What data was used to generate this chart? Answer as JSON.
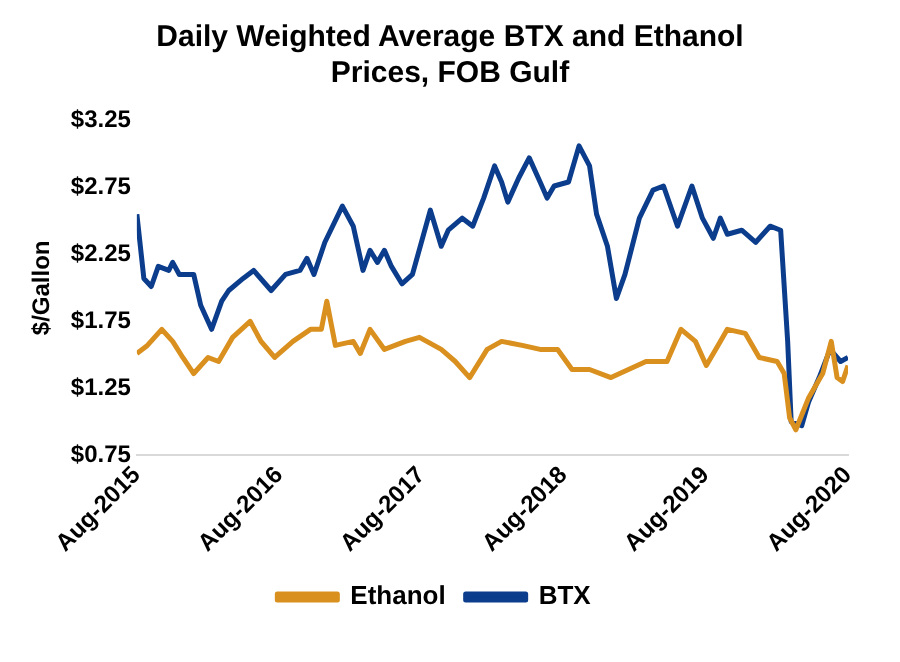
{
  "chart_data": {
    "type": "line",
    "title": "Daily Weighted Average BTX and Ethanol Prices, FOB Gulf",
    "ylabel": "$/Gallon",
    "xlim": [
      "2015-08",
      "2020-08"
    ],
    "xticks": [
      {
        "value": "2015-08",
        "label": "Aug-2015"
      },
      {
        "value": "2016-08",
        "label": "Aug-2016"
      },
      {
        "value": "2017-08",
        "label": "Aug-2017"
      },
      {
        "value": "2018-08",
        "label": "Aug-2018"
      },
      {
        "value": "2019-08",
        "label": "Aug-2019"
      },
      {
        "value": "2020-08",
        "label": "Aug-2020"
      }
    ],
    "ylim": [
      0.75,
      3.25
    ],
    "yticks": [
      {
        "value": 0.75,
        "label": "$0.75"
      },
      {
        "value": 1.25,
        "label": "$1.25"
      },
      {
        "value": 1.75,
        "label": "$1.75"
      },
      {
        "value": 2.25,
        "label": "$2.25"
      },
      {
        "value": 2.75,
        "label": "$2.75"
      },
      {
        "value": 3.25,
        "label": "$3.25"
      }
    ],
    "grid": false,
    "legend": "bottom",
    "marker": "none",
    "line_style": "solid",
    "series": [
      {
        "name": "Ethanol",
        "color": "#d9901e",
        "x": [
          "2015-08-01",
          "2015-08-28",
          "2015-10-04",
          "2015-11-01",
          "2015-11-27",
          "2015-12-25",
          "2016-01-31",
          "2016-02-27",
          "2016-04-03",
          "2016-05-18",
          "2016-06-15",
          "2016-07-20",
          "2016-09-05",
          "2016-10-20",
          "2016-11-17",
          "2016-12-01",
          "2016-12-23",
          "2017-02-07",
          "2017-02-25",
          "2017-03-22",
          "2017-04-28",
          "2017-06-21",
          "2017-07-27",
          "2017-09-21",
          "2017-10-27",
          "2017-12-03",
          "2018-01-17",
          "2018-02-23",
          "2018-04-17",
          "2018-06-02",
          "2018-07-17",
          "2018-08-23",
          "2018-10-07",
          "2018-12-01",
          "2019-01-15",
          "2019-03-01",
          "2019-04-24",
          "2019-05-30",
          "2019-07-06",
          "2019-08-03",
          "2019-09-08",
          "2019-09-26",
          "2019-11-11",
          "2019-12-17",
          "2020-02-01",
          "2020-02-19",
          "2020-03-04",
          "2020-03-20",
          "2020-04-22",
          "2020-05-28",
          "2020-06-19",
          "2020-07-04",
          "2020-07-18",
          "2020-08-01"
        ],
        "values": [
          1.51,
          1.57,
          1.69,
          1.6,
          1.48,
          1.36,
          1.48,
          1.45,
          1.63,
          1.75,
          1.6,
          1.48,
          1.6,
          1.69,
          1.69,
          1.9,
          1.57,
          1.6,
          1.51,
          1.69,
          1.54,
          1.6,
          1.63,
          1.54,
          1.45,
          1.33,
          1.54,
          1.6,
          1.57,
          1.54,
          1.54,
          1.39,
          1.39,
          1.33,
          1.39,
          1.45,
          1.45,
          1.69,
          1.6,
          1.42,
          1.6,
          1.69,
          1.66,
          1.48,
          1.45,
          1.36,
          1.03,
          0.94,
          1.18,
          1.36,
          1.6,
          1.33,
          1.3,
          1.42
        ]
      },
      {
        "name": "BTX",
        "color": "#0b3d8c",
        "x": [
          "2015-08-01",
          "2015-08-19",
          "2015-09-07",
          "2015-09-25",
          "2015-10-22",
          "2015-11-01",
          "2015-11-18",
          "2015-12-25",
          "2016-01-12",
          "2016-02-09",
          "2016-03-06",
          "2016-03-24",
          "2016-04-30",
          "2016-05-27",
          "2016-07-11",
          "2016-08-17",
          "2016-09-23",
          "2016-10-11",
          "2016-10-29",
          "2016-11-26",
          "2017-01-10",
          "2017-02-07",
          "2017-03-04",
          "2017-03-22",
          "2017-04-10",
          "2017-04-28",
          "2017-05-16",
          "2017-06-12",
          "2017-07-09",
          "2017-08-24",
          "2017-09-21",
          "2017-10-09",
          "2017-11-14",
          "2017-12-11",
          "2018-01-08",
          "2018-02-05",
          "2018-02-23",
          "2018-03-11",
          "2018-04-08",
          "2018-05-05",
          "2018-06-02",
          "2018-06-20",
          "2018-07-08",
          "2018-08-14",
          "2018-09-10",
          "2018-10-07",
          "2018-10-25",
          "2018-11-22",
          "2018-12-15",
          "2019-01-06",
          "2019-02-12",
          "2019-03-19",
          "2019-04-15",
          "2019-05-21",
          "2019-06-27",
          "2019-07-24",
          "2019-08-21",
          "2019-09-08",
          "2019-09-26",
          "2019-11-02",
          "2019-12-08",
          "2020-01-14",
          "2020-02-10",
          "2020-02-28",
          "2020-03-08",
          "2020-04-04",
          "2020-04-22",
          "2020-05-19",
          "2020-06-16",
          "2020-07-13",
          "2020-08-01"
        ],
        "values": [
          2.55,
          2.07,
          2.01,
          2.16,
          2.13,
          2.19,
          2.1,
          2.1,
          1.87,
          1.69,
          1.9,
          1.98,
          2.07,
          2.13,
          1.98,
          2.1,
          2.13,
          2.22,
          2.1,
          2.34,
          2.61,
          2.46,
          2.13,
          2.28,
          2.19,
          2.28,
          2.16,
          2.03,
          2.1,
          2.58,
          2.31,
          2.43,
          2.52,
          2.46,
          2.67,
          2.91,
          2.79,
          2.64,
          2.82,
          2.97,
          2.79,
          2.67,
          2.76,
          2.79,
          3.06,
          2.91,
          2.55,
          2.31,
          1.92,
          2.1,
          2.52,
          2.73,
          2.76,
          2.46,
          2.76,
          2.52,
          2.37,
          2.52,
          2.4,
          2.43,
          2.34,
          2.46,
          2.43,
          1.6,
          1.0,
          0.97,
          1.15,
          1.33,
          1.54,
          1.45,
          1.48
        ]
      }
    ]
  }
}
